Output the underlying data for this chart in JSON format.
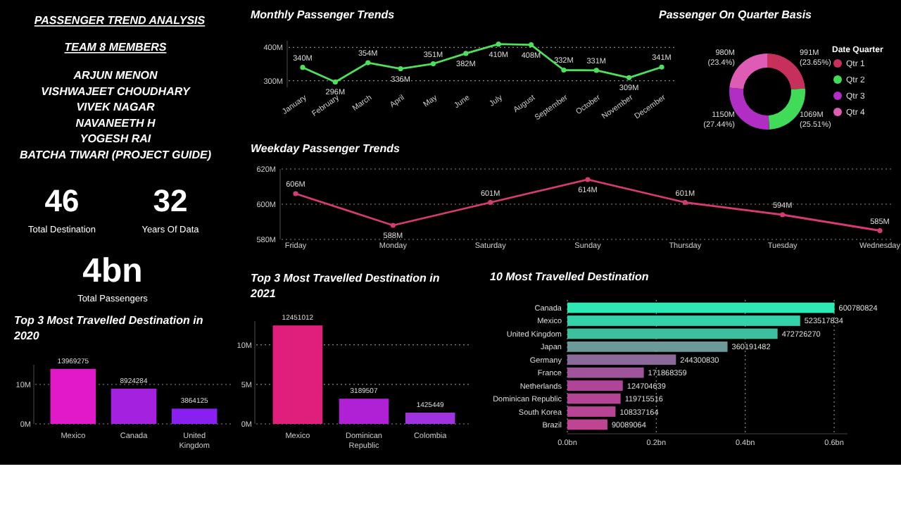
{
  "chart_data": [
    {
      "type": "other",
      "title": "PASSENGER TREND ANALYSIS",
      "subtitle": "TEAM 8 MEMBERS",
      "annotations": [
        "ARJUN MENON",
        "VISHWAJEET CHOUDHARY",
        "VIVEK NAGAR",
        "NAVANEETH H",
        "YOGESH RAI",
        "BATCHA TIWARI (PROJECT GUIDE)"
      ]
    },
    {
      "type": "other",
      "annotations": [
        "46",
        "Total Destination",
        "32",
        "Years Of Data",
        "4bn",
        "Total Passengers"
      ]
    },
    {
      "type": "line",
      "title": "Monthly Passenger Trends",
      "categories": [
        "January",
        "February",
        "March",
        "April",
        "May",
        "June",
        "July",
        "August",
        "September",
        "October",
        "November",
        "December"
      ],
      "series": [
        {
          "color": "#4ee05a",
          "values": [
            340,
            296,
            354,
            336,
            351,
            382,
            410,
            408,
            332,
            331,
            309,
            341
          ],
          "value_labels": [
            "340M",
            "296M",
            "354M",
            "336M",
            "351M",
            "382M",
            "410M",
            "408M",
            "332M",
            "331M",
            "309M",
            "341M"
          ]
        }
      ],
      "ylim": [
        280,
        420
      ],
      "yticks": [
        {
          "value": 300,
          "label": "300M"
        },
        {
          "value": 400,
          "label": "400M"
        }
      ],
      "grid": "y",
      "marker": "circle"
    },
    {
      "type": "donut",
      "title": "Passenger On Quarter Basis",
      "legend_title": "Date Quarter",
      "legend": "right",
      "categories": [
        "Qtr 1",
        "Qtr 2",
        "Qtr 3",
        "Qtr 4"
      ],
      "values": [
        23.65,
        25.51,
        27.44,
        23.4
      ],
      "colors": [
        "#c8305c",
        "#40dc58",
        "#b02ec4",
        "#de5cb4"
      ],
      "value_labels": [
        "991M (23.65%)",
        "1069M (25.51%)",
        "1150M (27.44%)",
        "980M (23.4%)"
      ]
    },
    {
      "type": "line",
      "title": "Weekday Passenger Trends",
      "categories": [
        "Friday",
        "Monday",
        "Saturday",
        "Sunday",
        "Thursday",
        "Tuesday",
        "Wednesday"
      ],
      "series": [
        {
          "color": "#d63a74",
          "values": [
            606,
            588,
            601,
            614,
            601,
            594,
            585
          ],
          "value_labels": [
            "606M",
            "588M",
            "601M",
            "614M",
            "601M",
            "594M",
            "585M"
          ]
        }
      ],
      "ylim": [
        580,
        620
      ],
      "yticks": [
        {
          "value": 580,
          "label": "580M"
        },
        {
          "value": 600,
          "label": "600M"
        },
        {
          "value": 620,
          "label": "620M"
        }
      ],
      "grid": "y",
      "marker": "circle"
    },
    {
      "type": "bar",
      "title": "Top 3 Most Travelled Destination in 2020",
      "categories": [
        "Mexico",
        "Canada",
        "United Kingdom"
      ],
      "values": [
        13969275,
        8924284,
        3864125
      ],
      "colors": [
        "#e01ac8",
        "#a421e0",
        "#8a20f0"
      ],
      "data_labels": true,
      "ylim": [
        0,
        15000000
      ],
      "yticks": [
        {
          "value": 0,
          "label": "0M"
        },
        {
          "value": 10000000,
          "label": "10M"
        }
      ],
      "grid": "y"
    },
    {
      "type": "bar",
      "title": "Top 3 Most Travelled Destination in 2021",
      "categories": [
        "Mexico",
        "Dominican Republic",
        "Colombia"
      ],
      "values": [
        12451012,
        3189507,
        1425449
      ],
      "colors": [
        "#e01e7c",
        "#b020d4",
        "#a032e0"
      ],
      "data_labels": true,
      "ylim": [
        0,
        13000000
      ],
      "yticks": [
        {
          "value": 0,
          "label": "0M"
        },
        {
          "value": 5000000,
          "label": "5M"
        },
        {
          "value": 10000000,
          "label": "10M"
        }
      ],
      "grid": "y"
    },
    {
      "type": "bar",
      "orientation": "horizontal",
      "title": "10 Most Travelled Destination",
      "categories": [
        "Canada",
        "Mexico",
        "United Kingdom",
        "Japan",
        "Germany",
        "France",
        "Netherlands",
        "Dominican Republic",
        "South Korea",
        "Brazil"
      ],
      "values": [
        600780824,
        523517834,
        472726270,
        360191482,
        244300830,
        171868359,
        124704639,
        119715516,
        108337164,
        90089064
      ],
      "colors": [
        "#2ee8b4",
        "#34d2a8",
        "#3cc09e",
        "#6c9a9a",
        "#8a6a98",
        "#a0559a",
        "#b04498",
        "#b44496",
        "#b84496",
        "#c04494"
      ],
      "data_labels": true,
      "xlim": [
        0,
        630000000
      ],
      "xticks": [
        {
          "value": 0,
          "label": "0.0bn"
        },
        {
          "value": 200000000,
          "label": "0.2bn"
        },
        {
          "value": 400000000,
          "label": "0.4bn"
        },
        {
          "value": 600000000,
          "label": "0.6bn"
        }
      ],
      "grid": "x"
    }
  ]
}
